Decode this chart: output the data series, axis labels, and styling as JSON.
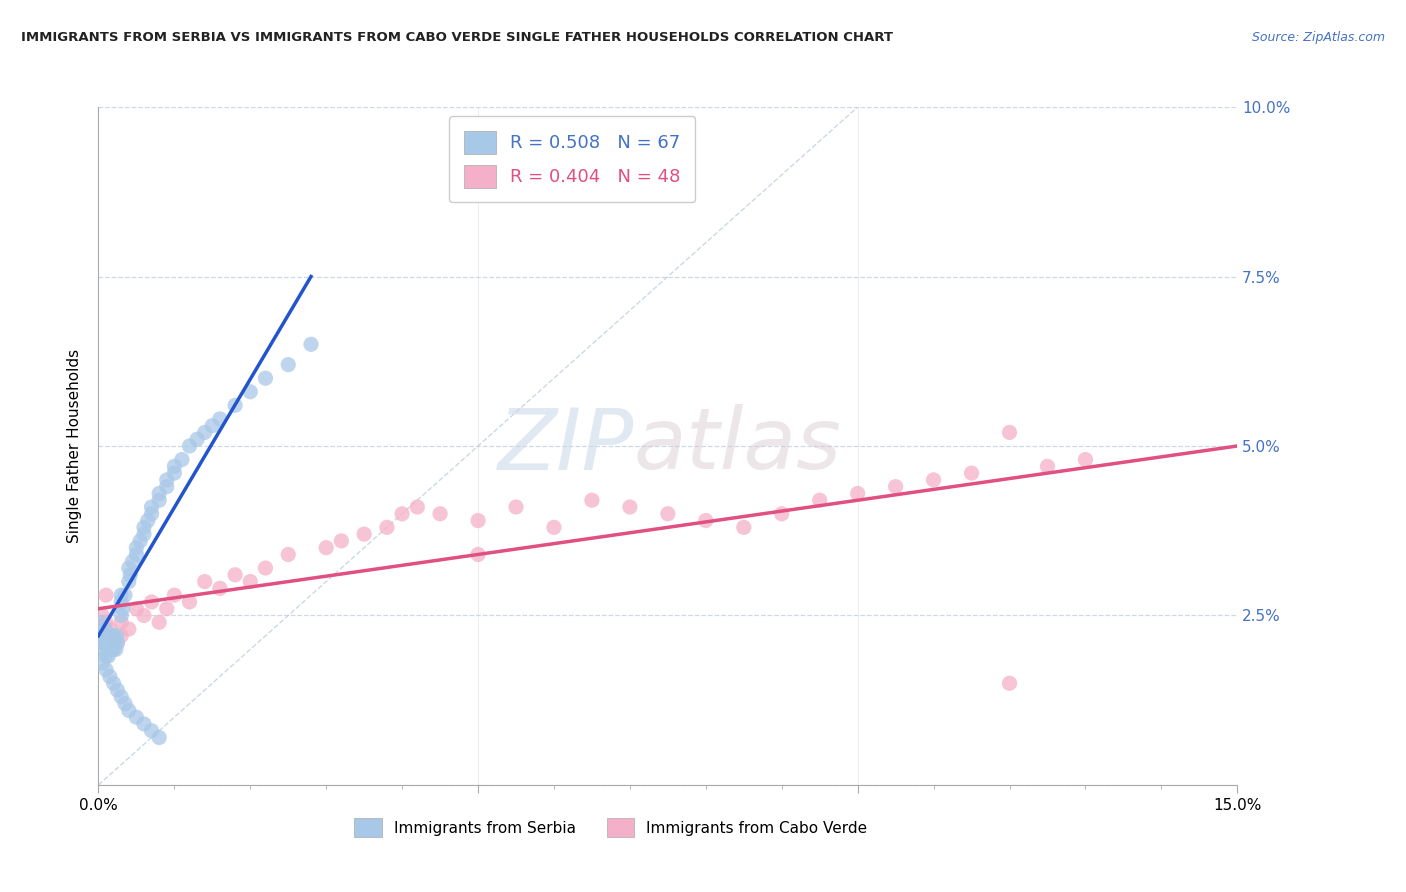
{
  "title": "IMMIGRANTS FROM SERBIA VS IMMIGRANTS FROM CABO VERDE SINGLE FATHER HOUSEHOLDS CORRELATION CHART",
  "source": "Source: ZipAtlas.com",
  "ylabel_label": "Single Father Households",
  "x_min": 0.0,
  "x_max": 0.15,
  "y_min": 0.0,
  "y_max": 0.1,
  "serbia_color": "#a8c8e8",
  "cabo_verde_color": "#f4b0c8",
  "serbia_line_color": "#2255cc",
  "cabo_verde_line_color": "#e05080",
  "diagonal_line_color": "#b8c8d8",
  "legend_serbia_label": "R = 0.508   N = 67",
  "legend_cabo_label": "R = 0.404   N = 48",
  "legend_bottom_serbia": "Immigrants from Serbia",
  "legend_bottom_cabo": "Immigrants from Cabo Verde",
  "watermark_zip": "ZIP",
  "watermark_atlas": "atlas",
  "serbia_x": [
    0.0003,
    0.0005,
    0.0007,
    0.0008,
    0.0009,
    0.001,
    0.001,
    0.0011,
    0.0012,
    0.0013,
    0.0014,
    0.0015,
    0.0016,
    0.0017,
    0.0018,
    0.002,
    0.002,
    0.0022,
    0.0023,
    0.0024,
    0.0025,
    0.003,
    0.003,
    0.003,
    0.0032,
    0.0035,
    0.004,
    0.004,
    0.0042,
    0.0045,
    0.005,
    0.005,
    0.0055,
    0.006,
    0.006,
    0.0065,
    0.007,
    0.007,
    0.008,
    0.008,
    0.009,
    0.009,
    0.01,
    0.01,
    0.011,
    0.012,
    0.013,
    0.014,
    0.015,
    0.016,
    0.0005,
    0.001,
    0.0015,
    0.002,
    0.0025,
    0.003,
    0.0035,
    0.004,
    0.005,
    0.006,
    0.007,
    0.008,
    0.018,
    0.02,
    0.022,
    0.025,
    0.028
  ],
  "serbia_y": [
    0.024,
    0.021,
    0.022,
    0.02,
    0.023,
    0.019,
    0.021,
    0.022,
    0.02,
    0.019,
    0.021,
    0.02,
    0.022,
    0.021,
    0.02,
    0.02,
    0.022,
    0.021,
    0.02,
    0.022,
    0.021,
    0.025,
    0.027,
    0.028,
    0.026,
    0.028,
    0.03,
    0.032,
    0.031,
    0.033,
    0.034,
    0.035,
    0.036,
    0.037,
    0.038,
    0.039,
    0.04,
    0.041,
    0.042,
    0.043,
    0.044,
    0.045,
    0.046,
    0.047,
    0.048,
    0.05,
    0.051,
    0.052,
    0.053,
    0.054,
    0.018,
    0.017,
    0.016,
    0.015,
    0.014,
    0.013,
    0.012,
    0.011,
    0.01,
    0.009,
    0.008,
    0.007,
    0.056,
    0.058,
    0.06,
    0.062,
    0.065
  ],
  "cabo_x": [
    0.0005,
    0.001,
    0.0015,
    0.002,
    0.0025,
    0.003,
    0.004,
    0.005,
    0.006,
    0.007,
    0.008,
    0.009,
    0.01,
    0.012,
    0.014,
    0.016,
    0.018,
    0.02,
    0.022,
    0.025,
    0.03,
    0.032,
    0.035,
    0.038,
    0.04,
    0.042,
    0.045,
    0.05,
    0.055,
    0.06,
    0.065,
    0.07,
    0.075,
    0.08,
    0.085,
    0.09,
    0.095,
    0.1,
    0.105,
    0.11,
    0.115,
    0.12,
    0.125,
    0.13,
    0.001,
    0.003,
    0.05,
    0.12
  ],
  "cabo_y": [
    0.025,
    0.024,
    0.023,
    0.022,
    0.021,
    0.024,
    0.023,
    0.026,
    0.025,
    0.027,
    0.024,
    0.026,
    0.028,
    0.027,
    0.03,
    0.029,
    0.031,
    0.03,
    0.032,
    0.034,
    0.035,
    0.036,
    0.037,
    0.038,
    0.04,
    0.041,
    0.04,
    0.039,
    0.041,
    0.038,
    0.042,
    0.041,
    0.04,
    0.039,
    0.038,
    0.04,
    0.042,
    0.043,
    0.044,
    0.045,
    0.046,
    0.052,
    0.047,
    0.048,
    0.028,
    0.022,
    0.034,
    0.015
  ],
  "serbia_line_x": [
    0.0,
    0.028
  ],
  "serbia_line_y": [
    0.022,
    0.075
  ],
  "cabo_line_x": [
    0.0,
    0.15
  ],
  "cabo_line_y": [
    0.026,
    0.05
  ]
}
